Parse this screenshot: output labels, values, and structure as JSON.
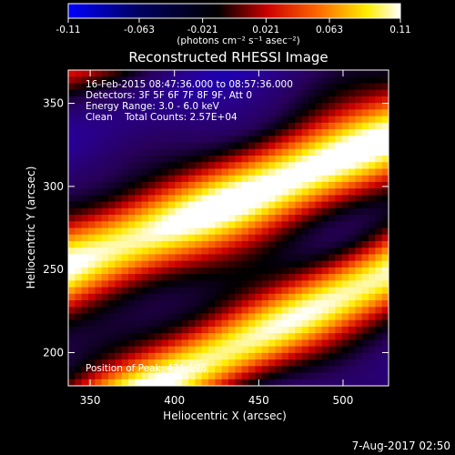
{
  "chart_data": {
    "type": "heatmap",
    "title": "Reconstructed RHESSI Image",
    "xlabel": "Heliocentric X (arcsec)",
    "ylabel": "Heliocentric Y (arcsec)",
    "xlim": [
      337,
      527
    ],
    "ylim": [
      180,
      370
    ],
    "x_ticks": [
      "350",
      "400",
      "450",
      "500"
    ],
    "x_tick_values": [
      350,
      400,
      450,
      500
    ],
    "y_ticks": [
      "200",
      "250",
      "300",
      "350"
    ],
    "y_tick_values": [
      200,
      250,
      300,
      350
    ],
    "colorbar": {
      "ticks": [
        "-0.11",
        "-0.063",
        "-0.021",
        "0.021",
        "0.063",
        "0.11"
      ],
      "tick_values": [
        -0.11,
        -0.063,
        -0.021,
        0.021,
        0.063,
        0.11
      ],
      "range": [
        -0.11,
        0.11
      ],
      "label": "(photons cm⁻² s⁻¹ asec⁻²)",
      "colors": [
        "#0000ff",
        "#000000",
        "#cc0000",
        "#ff6600",
        "#ffee00",
        "#ffffff"
      ]
    },
    "annotations": [
      "16-Feb-2015 08:47:36.000 to 08:57:36.000",
      "Detectors: 3F 5F 6F 7F 8F 9F, Att 0",
      "Energy Range: 3.0 - 6.0 keV",
      "Clean    Total Counts: 2.57E+04",
      "Position of Peak: 421,196"
    ],
    "date_stamp": "7-Aug-2017 02:50"
  }
}
